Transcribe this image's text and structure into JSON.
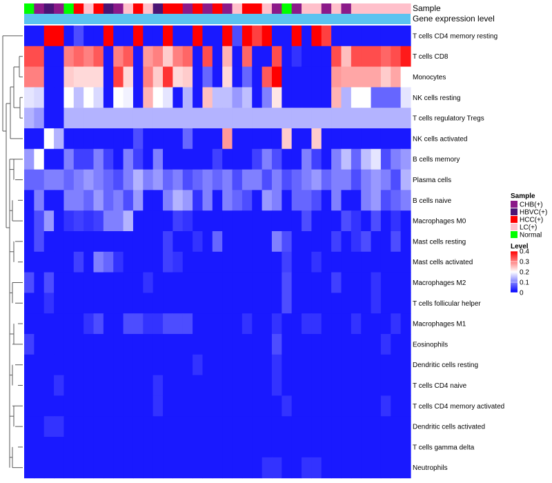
{
  "chart_data": {
    "type": "heatmap",
    "annotation_labels": [
      "Sample",
      "Gene expression level"
    ],
    "sample_groups": [
      "Normal",
      "CHB(+)",
      "HBVC(+)",
      "CHB(+)",
      "Normal",
      "HCC(+)",
      "LC(+)",
      "HCC(+)",
      "HBVC(+)",
      "CHB(+)",
      "LC(+)",
      "HCC(+)",
      "LC(+)",
      "HBVC(+)",
      "HCC(+)",
      "HCC(+)",
      "CHB(+)",
      "HCC(+)",
      "CHB(+)",
      "HCC(+)",
      "CHB(+)",
      "LC(+)",
      "HCC(+)",
      "HCC(+)",
      "LC(+)",
      "CHB(+)",
      "Normal",
      "CHB(+)",
      "LC(+)",
      "LC(+)",
      "CHB(+)",
      "LC(+)",
      "CHB(+)",
      "LC(+)",
      "LC(+)",
      "LC(+)",
      "LC(+)",
      "LC(+)",
      "LC(+)"
    ],
    "rows": [
      "T cells CD4 memory resting",
      "T cells CD8",
      "Monocytes",
      "NK cells resting",
      "T cells regulatory  Tregs",
      "NK cells activated",
      "B cells memory",
      "Plasma cells",
      "B cells naive",
      "Macrophages M0",
      "Mast cells resting",
      "Mast cells activated",
      "Macrophages M2",
      "T cells follicular helper",
      "Macrophages M1",
      "Eosinophils",
      "Dendritic cells resting",
      "T cells CD4 naive",
      "T cells CD4 memory activated",
      "Dendritic cells activated",
      "T cells gamma delta",
      "Neutrophils"
    ],
    "values": [
      [
        0.02,
        0.02,
        0.4,
        0.4,
        0.02,
        0.06,
        0.02,
        0.02,
        0.4,
        0.02,
        0.02,
        0.4,
        0.02,
        0.02,
        0.4,
        0.02,
        0.02,
        0.4,
        0.02,
        0.02,
        0.4,
        0.06,
        0.4,
        0.35,
        0.4,
        0.02,
        0.02,
        0.4,
        0.02,
        0.4,
        0.35,
        0.02,
        0.02,
        0.02,
        0.02,
        0.02,
        0.02,
        0.02,
        0.02
      ],
      [
        0.34,
        0.34,
        0.02,
        0.02,
        0.3,
        0.32,
        0.3,
        0.33,
        0.02,
        0.3,
        0.33,
        0.02,
        0.28,
        0.3,
        0.24,
        0.3,
        0.32,
        0.02,
        0.34,
        0.02,
        0.26,
        0.02,
        0.32,
        0.02,
        0.02,
        0.34,
        0.02,
        0.04,
        0.02,
        0.02,
        0.02,
        0.34,
        0.25,
        0.34,
        0.34,
        0.34,
        0.32,
        0.34,
        0.38
      ],
      [
        0.3,
        0.3,
        0.02,
        0.02,
        0.24,
        0.23,
        0.23,
        0.23,
        0.02,
        0.35,
        0.23,
        0.02,
        0.3,
        0.24,
        0.36,
        0.23,
        0.24,
        0.02,
        0.08,
        0.02,
        0.23,
        0.02,
        0.08,
        0.02,
        0.33,
        0.4,
        0.02,
        0.02,
        0.02,
        0.02,
        0.02,
        0.28,
        0.27,
        0.27,
        0.27,
        0.27,
        0.24,
        0.27,
        0.2
      ],
      [
        0.18,
        0.17,
        0.02,
        0.02,
        0.2,
        0.15,
        0.2,
        0.17,
        0.02,
        0.2,
        0.19,
        0.02,
        0.26,
        0.2,
        0.18,
        0.02,
        0.14,
        0.02,
        0.25,
        0.15,
        0.15,
        0.12,
        0.15,
        0.02,
        0.1,
        0.22,
        0.02,
        0.02,
        0.02,
        0.02,
        0.02,
        0.26,
        0.14,
        0.2,
        0.2,
        0.08,
        0.08,
        0.08,
        0.18
      ],
      [
        0.14,
        0.12,
        0.02,
        0.02,
        0.14,
        0.14,
        0.14,
        0.14,
        0.14,
        0.14,
        0.14,
        0.14,
        0.14,
        0.14,
        0.14,
        0.14,
        0.14,
        0.14,
        0.14,
        0.14,
        0.14,
        0.14,
        0.14,
        0.14,
        0.14,
        0.14,
        0.14,
        0.14,
        0.14,
        0.14,
        0.14,
        0.14,
        0.14,
        0.14,
        0.14,
        0.14,
        0.14,
        0.14,
        0.14
      ],
      [
        0.02,
        0.02,
        0.2,
        0.14,
        0.02,
        0.02,
        0.02,
        0.02,
        0.02,
        0.02,
        0.02,
        0.06,
        0.02,
        0.02,
        0.02,
        0.02,
        0.08,
        0.02,
        0.02,
        0.02,
        0.28,
        0.02,
        0.02,
        0.02,
        0.02,
        0.02,
        0.24,
        0.02,
        0.02,
        0.24,
        0.02,
        0.02,
        0.02,
        0.02,
        0.02,
        0.02,
        0.02,
        0.02,
        0.02
      ],
      [
        0.12,
        0.2,
        0.02,
        0.02,
        0.1,
        0.05,
        0.05,
        0.1,
        0.05,
        0.02,
        0.1,
        0.05,
        0.02,
        0.1,
        0.02,
        0.02,
        0.02,
        0.02,
        0.02,
        0.05,
        0.02,
        0.02,
        0.02,
        0.05,
        0.1,
        0.06,
        0.02,
        0.02,
        0.1,
        0.05,
        0.02,
        0.1,
        0.15,
        0.08,
        0.15,
        0.18,
        0.06,
        0.1,
        0.12
      ],
      [
        0.08,
        0.08,
        0.1,
        0.1,
        0.08,
        0.1,
        0.12,
        0.1,
        0.08,
        0.06,
        0.1,
        0.14,
        0.1,
        0.12,
        0.08,
        0.1,
        0.06,
        0.08,
        0.1,
        0.08,
        0.1,
        0.06,
        0.1,
        0.1,
        0.06,
        0.1,
        0.06,
        0.08,
        0.1,
        0.12,
        0.08,
        0.1,
        0.1,
        0.06,
        0.1,
        0.12,
        0.1,
        0.06,
        0.14
      ],
      [
        0.02,
        0.1,
        0.02,
        0.02,
        0.1,
        0.1,
        0.08,
        0.12,
        0.08,
        0.1,
        0.06,
        0.12,
        0.02,
        0.02,
        0.1,
        0.14,
        0.12,
        0.04,
        0.1,
        0.02,
        0.1,
        0.08,
        0.06,
        0.02,
        0.12,
        0.1,
        0.02,
        0.08,
        0.08,
        0.06,
        0.02,
        0.1,
        0.02,
        0.02,
        0.1,
        0.12,
        0.06,
        0.08,
        0.1
      ],
      [
        0.02,
        0.06,
        0.12,
        0.02,
        0.04,
        0.05,
        0.04,
        0.05,
        0.1,
        0.1,
        0.14,
        0.02,
        0.02,
        0.02,
        0.02,
        0.05,
        0.04,
        0.02,
        0.02,
        0.02,
        0.02,
        0.02,
        0.02,
        0.02,
        0.02,
        0.02,
        0.02,
        0.02,
        0.06,
        0.02,
        0.02,
        0.02,
        0.06,
        0.04,
        0.02,
        0.06,
        0.02,
        0.04,
        0.02
      ],
      [
        0.02,
        0.06,
        0.02,
        0.02,
        0.02,
        0.02,
        0.02,
        0.02,
        0.02,
        0.02,
        0.02,
        0.02,
        0.02,
        0.02,
        0.05,
        0.02,
        0.02,
        0.04,
        0.02,
        0.08,
        0.02,
        0.02,
        0.02,
        0.02,
        0.02,
        0.1,
        0.06,
        0.02,
        0.02,
        0.02,
        0.02,
        0.05,
        0.02,
        0.04,
        0.06,
        0.02,
        0.02,
        0.06,
        0.02
      ],
      [
        0.02,
        0.02,
        0.02,
        0.02,
        0.02,
        0.05,
        0.02,
        0.1,
        0.08,
        0.04,
        0.02,
        0.02,
        0.02,
        0.02,
        0.05,
        0.04,
        0.02,
        0.02,
        0.02,
        0.02,
        0.02,
        0.02,
        0.02,
        0.02,
        0.02,
        0.02,
        0.05,
        0.02,
        0.02,
        0.04,
        0.02,
        0.02,
        0.02,
        0.02,
        0.02,
        0.02,
        0.02,
        0.02,
        0.02
      ],
      [
        0.06,
        0.02,
        0.06,
        0.02,
        0.02,
        0.02,
        0.02,
        0.02,
        0.02,
        0.02,
        0.02,
        0.02,
        0.04,
        0.02,
        0.02,
        0.02,
        0.02,
        0.02,
        0.02,
        0.02,
        0.02,
        0.02,
        0.02,
        0.02,
        0.02,
        0.02,
        0.06,
        0.02,
        0.02,
        0.02,
        0.02,
        0.05,
        0.02,
        0.02,
        0.02,
        0.04,
        0.02,
        0.02,
        0.02
      ],
      [
        0.02,
        0.02,
        0.04,
        0.02,
        0.02,
        0.02,
        0.02,
        0.02,
        0.02,
        0.02,
        0.02,
        0.02,
        0.02,
        0.02,
        0.02,
        0.02,
        0.02,
        0.02,
        0.02,
        0.02,
        0.02,
        0.02,
        0.02,
        0.02,
        0.02,
        0.02,
        0.06,
        0.02,
        0.02,
        0.02,
        0.02,
        0.02,
        0.02,
        0.02,
        0.02,
        0.04,
        0.02,
        0.02,
        0.02
      ],
      [
        0.02,
        0.02,
        0.02,
        0.02,
        0.02,
        0.02,
        0.04,
        0.06,
        0.02,
        0.02,
        0.06,
        0.06,
        0.04,
        0.04,
        0.06,
        0.06,
        0.06,
        0.02,
        0.02,
        0.02,
        0.02,
        0.02,
        0.04,
        0.02,
        0.02,
        0.04,
        0.02,
        0.02,
        0.04,
        0.04,
        0.02,
        0.02,
        0.02,
        0.04,
        0.02,
        0.02,
        0.02,
        0.04,
        0.02
      ],
      [
        0.05,
        0.02,
        0.02,
        0.02,
        0.02,
        0.02,
        0.02,
        0.02,
        0.02,
        0.02,
        0.02,
        0.02,
        0.02,
        0.02,
        0.02,
        0.02,
        0.02,
        0.02,
        0.02,
        0.02,
        0.02,
        0.02,
        0.02,
        0.02,
        0.02,
        0.06,
        0.02,
        0.02,
        0.02,
        0.02,
        0.02,
        0.02,
        0.02,
        0.02,
        0.02,
        0.02,
        0.04,
        0.02,
        0.02
      ],
      [
        0.02,
        0.02,
        0.02,
        0.02,
        0.02,
        0.02,
        0.02,
        0.02,
        0.02,
        0.02,
        0.02,
        0.02,
        0.02,
        0.02,
        0.02,
        0.02,
        0.02,
        0.04,
        0.02,
        0.02,
        0.02,
        0.02,
        0.02,
        0.02,
        0.02,
        0.04,
        0.02,
        0.02,
        0.02,
        0.02,
        0.02,
        0.02,
        0.02,
        0.02,
        0.02,
        0.02,
        0.02,
        0.02,
        0.02
      ],
      [
        0.02,
        0.02,
        0.02,
        0.04,
        0.02,
        0.02,
        0.02,
        0.02,
        0.02,
        0.02,
        0.02,
        0.02,
        0.02,
        0.04,
        0.02,
        0.02,
        0.02,
        0.02,
        0.02,
        0.02,
        0.02,
        0.02,
        0.02,
        0.02,
        0.02,
        0.04,
        0.02,
        0.02,
        0.02,
        0.02,
        0.02,
        0.02,
        0.02,
        0.02,
        0.02,
        0.02,
        0.02,
        0.02,
        0.02
      ],
      [
        0.02,
        0.02,
        0.02,
        0.02,
        0.02,
        0.02,
        0.02,
        0.02,
        0.02,
        0.02,
        0.02,
        0.02,
        0.02,
        0.04,
        0.02,
        0.02,
        0.02,
        0.02,
        0.02,
        0.02,
        0.02,
        0.02,
        0.02,
        0.02,
        0.02,
        0.02,
        0.04,
        0.02,
        0.02,
        0.02,
        0.02,
        0.02,
        0.02,
        0.02,
        0.02,
        0.02,
        0.04,
        0.02,
        0.02
      ],
      [
        0.02,
        0.02,
        0.04,
        0.04,
        0.02,
        0.02,
        0.02,
        0.02,
        0.02,
        0.02,
        0.02,
        0.02,
        0.02,
        0.02,
        0.02,
        0.02,
        0.02,
        0.02,
        0.02,
        0.02,
        0.02,
        0.02,
        0.02,
        0.02,
        0.02,
        0.02,
        0.02,
        0.02,
        0.02,
        0.02,
        0.02,
        0.02,
        0.02,
        0.02,
        0.02,
        0.02,
        0.02,
        0.02,
        0.02
      ],
      [
        0.02,
        0.02,
        0.02,
        0.02,
        0.02,
        0.02,
        0.02,
        0.02,
        0.02,
        0.02,
        0.02,
        0.02,
        0.02,
        0.02,
        0.02,
        0.02,
        0.02,
        0.02,
        0.02,
        0.02,
        0.02,
        0.02,
        0.02,
        0.02,
        0.02,
        0.02,
        0.02,
        0.02,
        0.02,
        0.02,
        0.02,
        0.02,
        0.02,
        0.02,
        0.02,
        0.02,
        0.02,
        0.02,
        0.02
      ],
      [
        0.02,
        0.02,
        0.02,
        0.02,
        0.02,
        0.02,
        0.02,
        0.02,
        0.02,
        0.02,
        0.02,
        0.02,
        0.02,
        0.02,
        0.02,
        0.02,
        0.02,
        0.02,
        0.02,
        0.02,
        0.02,
        0.02,
        0.02,
        0.02,
        0.04,
        0.04,
        0.02,
        0.02,
        0.04,
        0.04,
        0.02,
        0.02,
        0.02,
        0.02,
        0.02,
        0.02,
        0.02,
        0.02,
        0.02
      ]
    ],
    "legend_sample": {
      "title": "Sample",
      "items": [
        {
          "label": "CHB(+)",
          "color": "#8b1a89"
        },
        {
          "label": "HBVC(+)",
          "color": "#4b1474"
        },
        {
          "label": "HCC(+)",
          "color": "#ff0000"
        },
        {
          "label": "LC(+)",
          "color": "#ffc0cb"
        },
        {
          "label": "Normal",
          "color": "#00ff00"
        }
      ]
    },
    "legend_level": {
      "title": "Level",
      "ticks": [
        0.4,
        0.3,
        0.2,
        0.1,
        0
      ],
      "colors": [
        "#0000ff",
        "#ffffff",
        "#ff0000"
      ],
      "range": [
        0,
        0.4
      ]
    },
    "expression_bar_color": "#5bc3f0"
  }
}
